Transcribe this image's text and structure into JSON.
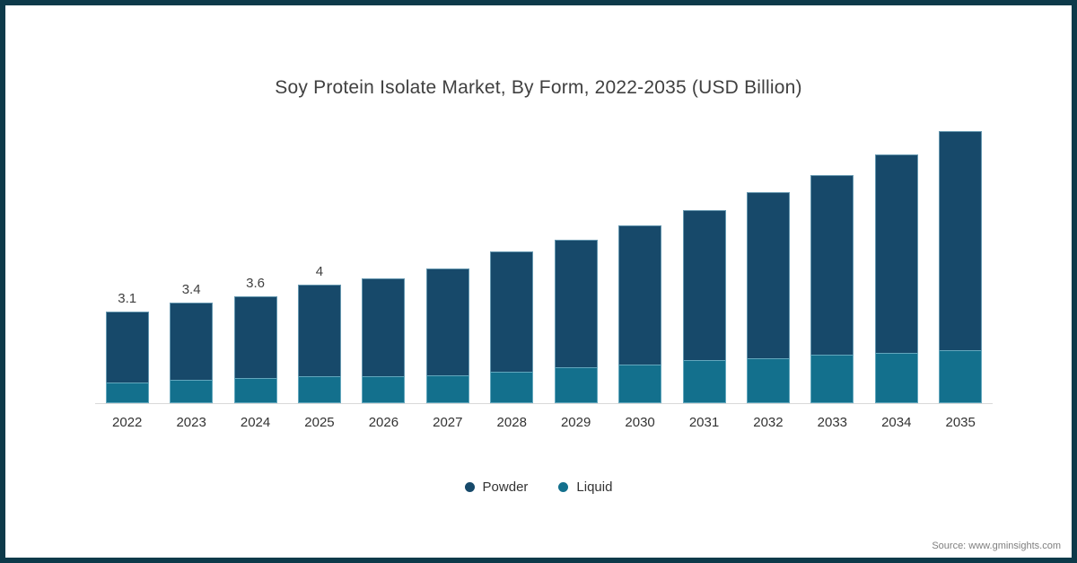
{
  "title": "Soy Protein Isolate Market, By Form, 2022-2035 (USD Billion)",
  "source_note": "Source: www.gminsights.com",
  "legend": {
    "items": [
      {
        "label": "Powder",
        "color": "#17496a"
      },
      {
        "label": "Liquid",
        "color": "#13708d"
      }
    ]
  },
  "colors": {
    "frame_border": "#0d3a4a",
    "axis_line": "#d9d9d9",
    "title_text": "#404040",
    "tick_text": "#333333",
    "bar_label_text": "#404040",
    "source_text": "#7f7f7f",
    "powder": "#17496a",
    "liquid": "#13708d"
  },
  "chart_data": {
    "type": "bar",
    "stacked": true,
    "title": "Soy Protein Isolate Market, By Form, 2022-2035 (USD Billion)",
    "xlabel": "",
    "ylabel": "",
    "unit": "USD Billion",
    "categories": [
      "2022",
      "2023",
      "2024",
      "2025",
      "2026",
      "2027",
      "2028",
      "2029",
      "2030",
      "2031",
      "2032",
      "2033",
      "2034",
      "2035"
    ],
    "series": [
      {
        "name": "Powder",
        "color": "#17496a",
        "stack_position": "top",
        "values": [
          2.4,
          2.6,
          2.75,
          3.1,
          3.3,
          3.6,
          4.05,
          4.3,
          4.7,
          5.05,
          5.6,
          6.05,
          6.7,
          7.4
        ]
      },
      {
        "name": "Liquid",
        "color": "#13708d",
        "stack_position": "bottom",
        "values": [
          0.7,
          0.8,
          0.85,
          0.9,
          0.9,
          0.95,
          1.05,
          1.2,
          1.3,
          1.45,
          1.5,
          1.65,
          1.7,
          1.8
        ]
      }
    ],
    "totals": [
      3.1,
      3.4,
      3.6,
      4.0,
      4.2,
      4.55,
      5.1,
      5.5,
      6.0,
      6.5,
      7.1,
      7.7,
      8.4,
      9.2
    ],
    "bar_labels": [
      "3.1",
      "3.4",
      "3.6",
      "4",
      null,
      null,
      null,
      null,
      null,
      null,
      null,
      null,
      null,
      null
    ],
    "ylim": [
      0,
      9.8
    ],
    "grid": false,
    "legend_position": "bottom-center"
  }
}
